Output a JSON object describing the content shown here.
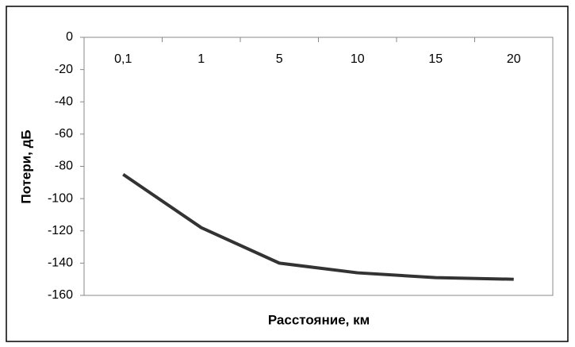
{
  "chart_data": {
    "type": "line",
    "categories": [
      "0,1",
      "1",
      "5",
      "10",
      "15",
      "20"
    ],
    "values": [
      -85,
      -118,
      -140,
      -146,
      -149,
      -150
    ],
    "color": "#333333",
    "xlabel": "Расстояние, км",
    "ylabel": "Потери, дБ",
    "ylim": [
      -160,
      0
    ],
    "yticks": [
      0,
      -20,
      -40,
      -60,
      -80,
      -100,
      -120,
      -140,
      -160
    ],
    "grid": false
  }
}
